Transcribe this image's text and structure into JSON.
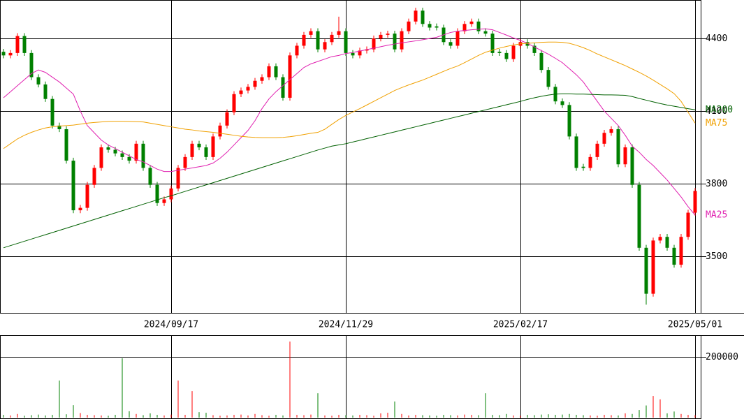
{
  "chart_data": {
    "type": "candlestick",
    "categories": [
      null,
      null,
      null,
      null,
      null,
      null,
      null,
      null,
      null,
      null,
      null,
      null,
      null,
      null,
      null,
      null,
      null,
      null,
      null,
      null,
      null,
      null,
      null,
      null,
      "2024/09/17",
      null,
      null,
      null,
      null,
      null,
      null,
      null,
      null,
      null,
      null,
      null,
      null,
      null,
      null,
      null,
      null,
      null,
      null,
      null,
      null,
      null,
      null,
      null,
      null,
      "2024/11/29",
      null,
      null,
      null,
      null,
      null,
      null,
      null,
      null,
      null,
      null,
      null,
      null,
      null,
      null,
      null,
      null,
      null,
      null,
      null,
      null,
      null,
      null,
      null,
      null,
      "2025/02/17",
      null,
      null,
      null,
      null,
      null,
      null,
      null,
      null,
      null,
      null,
      null,
      null,
      null,
      null,
      null,
      null,
      null,
      null,
      null,
      null,
      null,
      null,
      null,
      null,
      "2025/05/01"
    ],
    "open": [
      4345,
      4330,
      4340,
      4410,
      4340,
      4240,
      4210,
      4150,
      4040,
      4025,
      3895,
      3690,
      3700,
      3795,
      3865,
      3950,
      3940,
      3925,
      3910,
      3895,
      3965,
      3865,
      3795,
      3720,
      3735,
      3780,
      3865,
      3910,
      3965,
      3950,
      3910,
      3995,
      4040,
      4095,
      4170,
      4185,
      4200,
      4225,
      4240,
      4285,
      4240,
      4155,
      4330,
      4370,
      4415,
      4430,
      4355,
      4385,
      4415,
      4430,
      4340,
      4330,
      4350,
      4355,
      4400,
      4415,
      4420,
      4355,
      4430,
      4470,
      4515,
      4460,
      4450,
      4445,
      4385,
      4370,
      4430,
      4460,
      4470,
      4430,
      4420,
      4345,
      4340,
      4315,
      4370,
      4385,
      4370,
      4340,
      4270,
      4200,
      4140,
      4125,
      3995,
      3870,
      3865,
      3910,
      3965,
      4010,
      4025,
      3880,
      3950,
      3795,
      3535,
      3345,
      3565,
      3580,
      3535,
      3465,
      3580,
      3680
    ],
    "high": [
      4357,
      4352,
      4422,
      4422,
      4352,
      4252,
      4222,
      4162,
      4052,
      4037,
      3907,
      3712,
      3807,
      3877,
      3962,
      3962,
      3952,
      3937,
      3922,
      3977,
      3977,
      3877,
      3807,
      3747,
      3792,
      3877,
      3922,
      3977,
      3977,
      3962,
      4007,
      4052,
      4107,
      4182,
      4197,
      4212,
      4237,
      4252,
      4297,
      4297,
      4252,
      4342,
      4382,
      4427,
      4442,
      4442,
      4397,
      4427,
      4490,
      4442,
      4352,
      4362,
      4367,
      4412,
      4427,
      4432,
      4432,
      4442,
      4482,
      4527,
      4527,
      4472,
      4462,
      4457,
      4397,
      4442,
      4472,
      4482,
      4482,
      4442,
      4432,
      4357,
      4352,
      4382,
      4397,
      4397,
      4382,
      4352,
      4282,
      4212,
      4152,
      4137,
      4007,
      3882,
      3922,
      3977,
      4022,
      4037,
      4037,
      3962,
      3962,
      3807,
      3547,
      3577,
      3592,
      3592,
      3547,
      3592,
      3692,
      3782
    ],
    "low": [
      4318,
      4318,
      4328,
      4328,
      4228,
      4198,
      4138,
      4028,
      4013,
      3883,
      3678,
      3678,
      3688,
      3783,
      3853,
      3928,
      3913,
      3898,
      3883,
      3883,
      3853,
      3783,
      3708,
      3708,
      3723,
      3768,
      3853,
      3898,
      3938,
      3898,
      3898,
      3983,
      4028,
      4083,
      4158,
      4173,
      4188,
      4213,
      4228,
      4228,
      4143,
      4143,
      4318,
      4358,
      4403,
      4343,
      4343,
      4373,
      4403,
      4328,
      4318,
      4318,
      4338,
      4343,
      4388,
      4403,
      4343,
      4343,
      4418,
      4458,
      4448,
      4433,
      4433,
      4373,
      4358,
      4358,
      4418,
      4448,
      4418,
      4408,
      4328,
      4328,
      4303,
      4303,
      4358,
      4358,
      4328,
      4258,
      4188,
      4128,
      4113,
      3983,
      3853,
      3853,
      3853,
      3898,
      3953,
      3998,
      3868,
      3868,
      3783,
      3523,
      3300,
      3333,
      3553,
      3523,
      3453,
      3453,
      3568,
      3668
    ],
    "close": [
      4330,
      4340,
      4410,
      4340,
      4240,
      4210,
      4150,
      4040,
      4025,
      3895,
      3690,
      3700,
      3795,
      3865,
      3950,
      3940,
      3925,
      3910,
      3895,
      3965,
      3865,
      3795,
      3720,
      3735,
      3780,
      3865,
      3910,
      3965,
      3950,
      3910,
      3995,
      4040,
      4095,
      4170,
      4185,
      4200,
      4225,
      4240,
      4285,
      4240,
      4155,
      4330,
      4370,
      4415,
      4430,
      4355,
      4385,
      4415,
      4430,
      4340,
      4330,
      4350,
      4355,
      4400,
      4415,
      4420,
      4355,
      4430,
      4470,
      4515,
      4460,
      4445,
      4445,
      4385,
      4370,
      4430,
      4460,
      4470,
      4430,
      4420,
      4340,
      4340,
      4315,
      4370,
      4385,
      4370,
      4340,
      4270,
      4200,
      4140,
      4125,
      3995,
      3865,
      3865,
      3910,
      3965,
      4010,
      4025,
      3880,
      3950,
      3795,
      3535,
      3345,
      3565,
      3580,
      3535,
      3465,
      3580,
      3680,
      3770
    ],
    "up_color": "#ff0000",
    "down_color": "#008000",
    "ylim": [
      3266,
      4559
    ],
    "yticks": [
      3500,
      3800,
      4100,
      4400
    ],
    "grid": true,
    "series": [
      {
        "name": "MA25",
        "color": "#e020b0",
        "values": [
          4155,
          4180,
          4205,
          4230,
          4255,
          4270,
          4260,
          4240,
          4220,
          4195,
          4170,
          4100,
          4040,
          4010,
          3980,
          3960,
          3945,
          3930,
          3915,
          3900,
          3890,
          3875,
          3860,
          3850,
          3850,
          3855,
          3860,
          3865,
          3870,
          3875,
          3885,
          3905,
          3930,
          3960,
          3990,
          4020,
          4060,
          4110,
          4150,
          4180,
          4205,
          4230,
          4255,
          4280,
          4295,
          4305,
          4315,
          4325,
          4330,
          4338,
          4342,
          4348,
          4354,
          4360,
          4366,
          4372,
          4377,
          4382,
          4386,
          4390,
          4395,
          4400,
          4405,
          4415,
          4425,
          4430,
          4433,
          4436,
          4438,
          4440,
          4436,
          4425,
          4414,
          4402,
          4392,
          4380,
          4365,
          4350,
          4335,
          4318,
          4300,
          4275,
          4250,
          4220,
          4180,
          4140,
          4100,
          4070,
          4040,
          4000,
          3955,
          3930,
          3900,
          3875,
          3845,
          3815,
          3780,
          3745,
          3705,
          3670
        ]
      },
      {
        "name": "MA75",
        "color": "#f0a000",
        "values": [
          3945,
          3965,
          3985,
          4000,
          4012,
          4022,
          4030,
          4035,
          4038,
          4040,
          4042,
          4046,
          4050,
          4053,
          4055,
          4057,
          4058,
          4058,
          4057,
          4056,
          4055,
          4050,
          4045,
          4040,
          4035,
          4030,
          4025,
          4022,
          4018,
          4015,
          4012,
          4008,
          4004,
          4000,
          3996,
          3993,
          3991,
          3990,
          3990,
          3990,
          3991,
          3994,
          3998,
          4003,
          4008,
          4012,
          4025,
          4045,
          4065,
          4082,
          4096,
          4110,
          4125,
          4140,
          4155,
          4170,
          4185,
          4197,
          4208,
          4218,
          4228,
          4240,
          4252,
          4264,
          4276,
          4286,
          4300,
          4315,
          4330,
          4343,
          4352,
          4360,
          4367,
          4373,
          4378,
          4380,
          4382,
          4384,
          4385,
          4385,
          4384,
          4380,
          4372,
          4362,
          4350,
          4336,
          4324,
          4312,
          4300,
          4288,
          4274,
          4260,
          4245,
          4228,
          4210,
          4192,
          4172,
          4140,
          4095,
          4050
        ]
      },
      {
        "name": "MA200",
        "color": "#006000",
        "values": [
          3535,
          3544,
          3553,
          3562,
          3571,
          3580,
          3589,
          3598,
          3607,
          3616,
          3625,
          3634,
          3643,
          3652,
          3661,
          3670,
          3679,
          3688,
          3697,
          3706,
          3715,
          3724,
          3733,
          3742,
          3750,
          3759,
          3768,
          3777,
          3786,
          3795,
          3804,
          3813,
          3822,
          3831,
          3840,
          3849,
          3858,
          3867,
          3876,
          3885,
          3894,
          3903,
          3912,
          3921,
          3930,
          3939,
          3947,
          3955,
          3960,
          3965,
          3972,
          3979,
          3986,
          3993,
          4000,
          4007,
          4014,
          4021,
          4028,
          4035,
          4042,
          4049,
          4056,
          4063,
          4070,
          4077,
          4084,
          4091,
          4098,
          4105,
          4112,
          4119,
          4126,
          4133,
          4140,
          4148,
          4155,
          4161,
          4166,
          4170,
          4171,
          4171,
          4170,
          4170,
          4169,
          4168,
          4167,
          4167,
          4166,
          4165,
          4160,
          4152,
          4145,
          4138,
          4131,
          4125,
          4120,
          4115,
          4110,
          4105
        ]
      }
    ],
    "volume": {
      "values": [
        9000,
        7000,
        12000,
        6000,
        8000,
        10000,
        7000,
        9000,
        122000,
        11000,
        41000,
        15000,
        9000,
        8000,
        7000,
        6000,
        9000,
        195000,
        21000,
        12000,
        8000,
        14000,
        9000,
        7000,
        10000,
        122000,
        9000,
        87000,
        18000,
        16000,
        8000,
        6000,
        7000,
        9000,
        10000,
        7000,
        12000,
        8000,
        6000,
        9000,
        7000,
        250000,
        9000,
        8000,
        10000,
        80000,
        7000,
        6000,
        9000,
        8000,
        7000,
        9000,
        8000,
        6000,
        14000,
        16000,
        53000,
        12000,
        7000,
        9000,
        8000,
        7000,
        6000,
        9000,
        8000,
        7000,
        10000,
        9000,
        8000,
        80000,
        9000,
        8000,
        12000,
        7000,
        6000,
        9000,
        8000,
        10000,
        11000,
        9000,
        10000,
        12000,
        9000,
        8000,
        7000,
        6000,
        9000,
        8000,
        7000,
        14000,
        12000,
        25000,
        40000,
        71000,
        60000,
        14000,
        20000,
        12000,
        9000,
        8000
      ],
      "ylim": [
        0,
        271000
      ],
      "yticks": [
        200000
      ]
    }
  }
}
